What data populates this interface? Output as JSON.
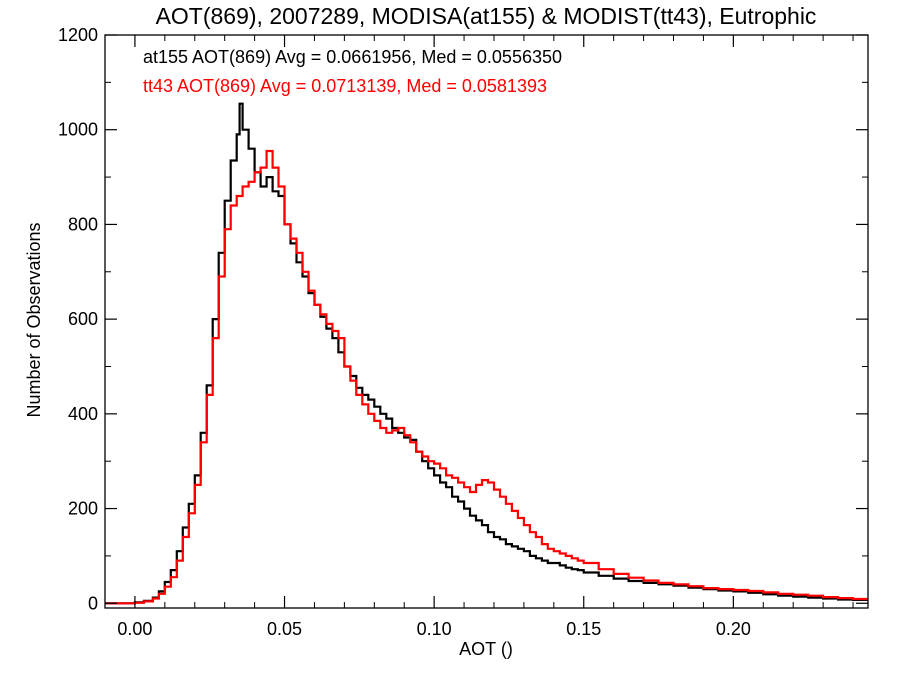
{
  "chart_data": {
    "type": "line",
    "title": "AOT(869), 2007289, MODISA(at155) & MODIST(tt43), Eutrophic",
    "xlabel": "AOT ()",
    "ylabel": "Number of Observations",
    "xlim": [
      -0.01,
      0.245
    ],
    "ylim": [
      -10,
      1200
    ],
    "xticks": [
      0.0,
      0.05,
      0.1,
      0.15,
      0.2
    ],
    "xtick_labels": [
      "0.00",
      "0.05",
      "0.10",
      "0.15",
      "0.20"
    ],
    "yticks": [
      0,
      200,
      400,
      600,
      800,
      1000,
      1200
    ],
    "ytick_labels": [
      "0",
      "200",
      "400",
      "600",
      "800",
      "1000",
      "1200"
    ],
    "grid": false,
    "legend_position": "top-left",
    "series": [
      {
        "name": "at155 AOT(869) Avg = 0.0661956, Med = 0.0556350",
        "color": "#000000",
        "points": [
          [
            -0.01,
            0
          ],
          [
            0.0,
            2
          ],
          [
            0.003,
            5
          ],
          [
            0.006,
            12
          ],
          [
            0.008,
            25
          ],
          [
            0.01,
            45
          ],
          [
            0.012,
            70
          ],
          [
            0.014,
            110
          ],
          [
            0.016,
            160
          ],
          [
            0.018,
            210
          ],
          [
            0.02,
            270
          ],
          [
            0.022,
            360
          ],
          [
            0.024,
            460
          ],
          [
            0.026,
            600
          ],
          [
            0.028,
            740
          ],
          [
            0.03,
            850
          ],
          [
            0.032,
            935
          ],
          [
            0.034,
            990
          ],
          [
            0.035,
            1055
          ],
          [
            0.036,
            1000
          ],
          [
            0.038,
            960
          ],
          [
            0.04,
            910
          ],
          [
            0.042,
            880
          ],
          [
            0.044,
            900
          ],
          [
            0.046,
            870
          ],
          [
            0.048,
            860
          ],
          [
            0.05,
            800
          ],
          [
            0.052,
            760
          ],
          [
            0.054,
            720
          ],
          [
            0.056,
            690
          ],
          [
            0.058,
            655
          ],
          [
            0.06,
            630
          ],
          [
            0.062,
            605
          ],
          [
            0.064,
            580
          ],
          [
            0.066,
            560
          ],
          [
            0.068,
            530
          ],
          [
            0.07,
            500
          ],
          [
            0.072,
            480
          ],
          [
            0.074,
            455
          ],
          [
            0.076,
            440
          ],
          [
            0.078,
            430
          ],
          [
            0.08,
            415
          ],
          [
            0.082,
            400
          ],
          [
            0.084,
            390
          ],
          [
            0.086,
            370
          ],
          [
            0.088,
            360
          ],
          [
            0.09,
            350
          ],
          [
            0.092,
            345
          ],
          [
            0.094,
            320
          ],
          [
            0.096,
            300
          ],
          [
            0.098,
            285
          ],
          [
            0.1,
            270
          ],
          [
            0.102,
            255
          ],
          [
            0.104,
            245
          ],
          [
            0.106,
            225
          ],
          [
            0.108,
            215
          ],
          [
            0.11,
            200
          ],
          [
            0.112,
            185
          ],
          [
            0.114,
            175
          ],
          [
            0.116,
            165
          ],
          [
            0.118,
            150
          ],
          [
            0.12,
            140
          ],
          [
            0.122,
            135
          ],
          [
            0.124,
            125
          ],
          [
            0.126,
            120
          ],
          [
            0.128,
            115
          ],
          [
            0.13,
            110
          ],
          [
            0.132,
            100
          ],
          [
            0.134,
            95
          ],
          [
            0.136,
            90
          ],
          [
            0.138,
            85
          ],
          [
            0.14,
            85
          ],
          [
            0.142,
            80
          ],
          [
            0.144,
            75
          ],
          [
            0.146,
            72
          ],
          [
            0.148,
            70
          ],
          [
            0.15,
            65
          ],
          [
            0.155,
            58
          ],
          [
            0.16,
            52
          ],
          [
            0.165,
            47
          ],
          [
            0.17,
            43
          ],
          [
            0.175,
            40
          ],
          [
            0.18,
            37
          ],
          [
            0.185,
            33
          ],
          [
            0.19,
            30
          ],
          [
            0.195,
            27
          ],
          [
            0.2,
            25
          ],
          [
            0.205,
            22
          ],
          [
            0.21,
            19
          ],
          [
            0.215,
            16
          ],
          [
            0.22,
            14
          ],
          [
            0.225,
            12
          ],
          [
            0.23,
            10
          ],
          [
            0.235,
            8
          ],
          [
            0.24,
            7
          ],
          [
            0.245,
            6
          ]
        ]
      },
      {
        "name": "tt43 AOT(869) Avg = 0.0713139, Med = 0.0581393",
        "color": "#ff0000",
        "points": [
          [
            -0.01,
            0
          ],
          [
            0.0,
            1
          ],
          [
            0.003,
            4
          ],
          [
            0.006,
            10
          ],
          [
            0.008,
            20
          ],
          [
            0.01,
            35
          ],
          [
            0.012,
            55
          ],
          [
            0.014,
            90
          ],
          [
            0.016,
            140
          ],
          [
            0.018,
            190
          ],
          [
            0.02,
            250
          ],
          [
            0.022,
            340
          ],
          [
            0.024,
            440
          ],
          [
            0.026,
            560
          ],
          [
            0.028,
            690
          ],
          [
            0.03,
            790
          ],
          [
            0.032,
            840
          ],
          [
            0.034,
            860
          ],
          [
            0.036,
            880
          ],
          [
            0.038,
            890
          ],
          [
            0.04,
            910
          ],
          [
            0.042,
            920
          ],
          [
            0.044,
            955
          ],
          [
            0.046,
            920
          ],
          [
            0.048,
            880
          ],
          [
            0.05,
            800
          ],
          [
            0.052,
            770
          ],
          [
            0.054,
            740
          ],
          [
            0.056,
            700
          ],
          [
            0.058,
            660
          ],
          [
            0.06,
            630
          ],
          [
            0.062,
            610
          ],
          [
            0.064,
            590
          ],
          [
            0.066,
            575
          ],
          [
            0.068,
            560
          ],
          [
            0.07,
            500
          ],
          [
            0.072,
            470
          ],
          [
            0.074,
            440
          ],
          [
            0.076,
            420
          ],
          [
            0.078,
            400
          ],
          [
            0.08,
            385
          ],
          [
            0.082,
            370
          ],
          [
            0.084,
            360
          ],
          [
            0.086,
            365
          ],
          [
            0.088,
            370
          ],
          [
            0.09,
            355
          ],
          [
            0.092,
            340
          ],
          [
            0.094,
            320
          ],
          [
            0.096,
            310
          ],
          [
            0.098,
            300
          ],
          [
            0.1,
            295
          ],
          [
            0.102,
            285
          ],
          [
            0.104,
            270
          ],
          [
            0.106,
            265
          ],
          [
            0.108,
            255
          ],
          [
            0.11,
            245
          ],
          [
            0.112,
            235
          ],
          [
            0.114,
            250
          ],
          [
            0.116,
            260
          ],
          [
            0.118,
            255
          ],
          [
            0.12,
            240
          ],
          [
            0.122,
            225
          ],
          [
            0.124,
            210
          ],
          [
            0.126,
            195
          ],
          [
            0.128,
            180
          ],
          [
            0.13,
            165
          ],
          [
            0.132,
            150
          ],
          [
            0.134,
            140
          ],
          [
            0.136,
            125
          ],
          [
            0.138,
            115
          ],
          [
            0.14,
            110
          ],
          [
            0.142,
            105
          ],
          [
            0.144,
            100
          ],
          [
            0.146,
            95
          ],
          [
            0.148,
            90
          ],
          [
            0.15,
            85
          ],
          [
            0.155,
            72
          ],
          [
            0.16,
            62
          ],
          [
            0.165,
            54
          ],
          [
            0.17,
            48
          ],
          [
            0.175,
            43
          ],
          [
            0.18,
            40
          ],
          [
            0.185,
            36
          ],
          [
            0.19,
            32
          ],
          [
            0.195,
            30
          ],
          [
            0.2,
            28
          ],
          [
            0.205,
            26
          ],
          [
            0.21,
            23
          ],
          [
            0.215,
            20
          ],
          [
            0.22,
            18
          ],
          [
            0.225,
            16
          ],
          [
            0.23,
            13
          ],
          [
            0.235,
            11
          ],
          [
            0.24,
            9
          ],
          [
            0.245,
            8
          ]
        ]
      }
    ]
  }
}
